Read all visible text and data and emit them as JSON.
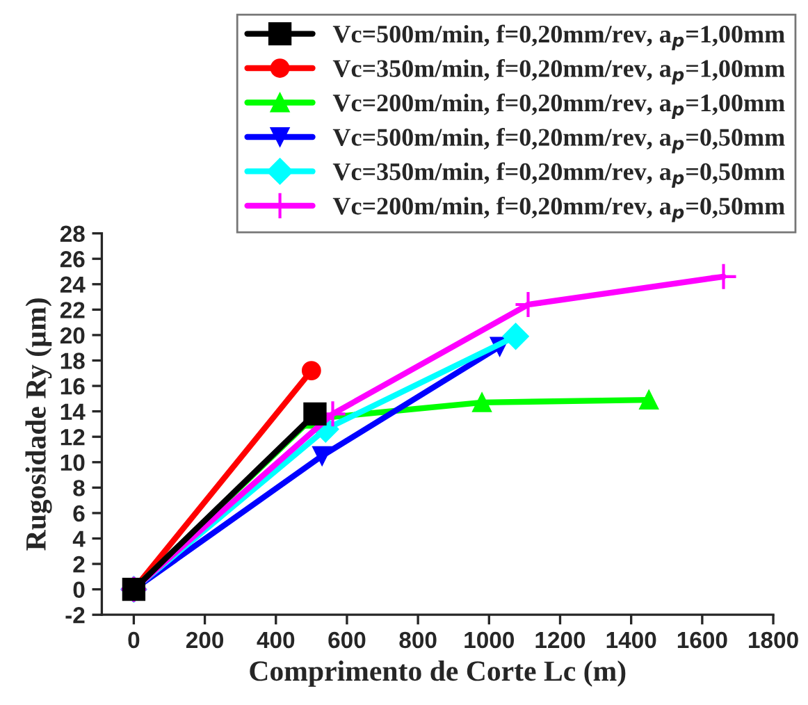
{
  "chart_data": {
    "type": "line",
    "xlabel": "Comprimento de Corte Lc (m)",
    "ylabel": "Rugosidade Ry (µm)",
    "xlim": [
      -90,
      1800
    ],
    "xticks": [
      0,
      200,
      400,
      600,
      800,
      1000,
      1200,
      1400,
      1600,
      1800
    ],
    "ylim": [
      -2,
      28
    ],
    "yticks": [
      -2,
      0,
      2,
      4,
      6,
      8,
      10,
      12,
      14,
      16,
      18,
      20,
      22,
      24,
      26,
      28
    ],
    "grid": false,
    "legend": "top right",
    "series": [
      {
        "name": "Vc=500m/min, f=0,20mm/rev, a$_{p}$=1,00mm",
        "color": "#000000",
        "marker": "square",
        "x": [
          0,
          510
        ],
        "values": [
          0,
          13.8
        ]
      },
      {
        "name": "Vc=350m/min, f=0,20mm/rev, a$_{p}$=1,00mm",
        "color": "#ff0000",
        "marker": "circle",
        "x": [
          0,
          500
        ],
        "values": [
          0,
          17.2
        ]
      },
      {
        "name": "Vc=200m/min, f=0,20mm/rev, a$_{p}$=1,00mm",
        "color": "#00ff00",
        "marker": "triangle",
        "x": [
          0,
          500,
          980,
          1450
        ],
        "values": [
          0,
          13.4,
          14.7,
          14.9
        ]
      },
      {
        "name": "Vc=500m/min, f=0,20mm/rev, a$_{p}$=0,50mm",
        "color": "#0000ff",
        "marker": "triangle_down",
        "x": [
          0,
          530,
          1030
        ],
        "values": [
          0,
          10.5,
          19.1
        ]
      },
      {
        "name": "Vc=350m/min, f=0,20mm/rev, a$_{p}$=0,50mm",
        "color": "#00ffff",
        "marker": "diamond",
        "x": [
          0,
          540,
          1075
        ],
        "values": [
          0,
          12.6,
          19.9
        ]
      },
      {
        "name": "Vc=200m/min, f=0,20mm/rev, a$_{p}$=0,50mm",
        "color": "#ff00ff",
        "marker": "cross",
        "x": [
          0,
          560,
          1110,
          1660
        ],
        "values": [
          0,
          13.8,
          22.4,
          24.6
        ]
      }
    ]
  }
}
